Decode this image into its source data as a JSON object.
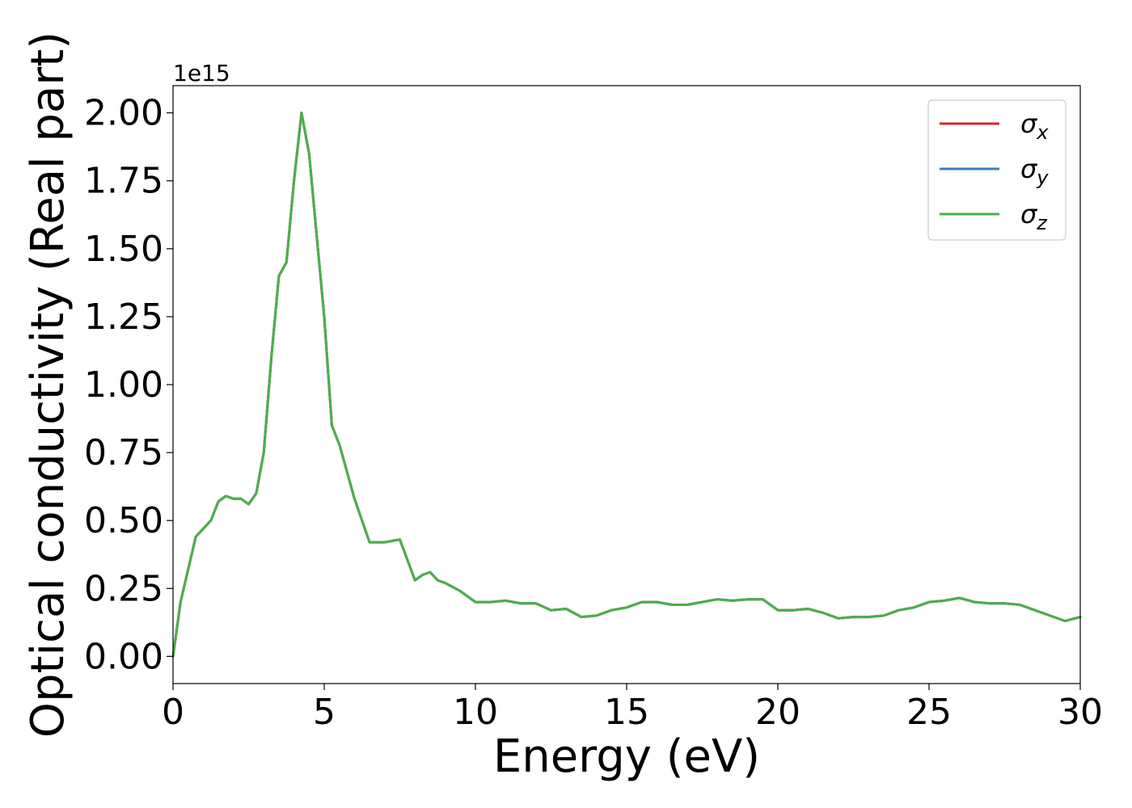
{
  "chart_data": {
    "type": "line",
    "xlabel": "Energy (eV)",
    "ylabel": "Optical conductivity (Real part)",
    "y_offset_label": "1e15",
    "xlim": [
      0,
      30
    ],
    "ylim": [
      -0.1,
      2.1
    ],
    "x_ticks": [
      0,
      5,
      10,
      15,
      20,
      25,
      30
    ],
    "x_tick_labels": [
      "0",
      "5",
      "10",
      "15",
      "20",
      "25",
      "30"
    ],
    "y_ticks": [
      0.0,
      0.25,
      0.5,
      0.75,
      1.0,
      1.25,
      1.5,
      1.75,
      2.0
    ],
    "y_tick_labels": [
      "0.00",
      "0.25",
      "0.50",
      "0.75",
      "1.00",
      "1.25",
      "1.50",
      "1.75",
      "2.00"
    ],
    "grid": false,
    "legend_position": "top-right",
    "legend": [
      {
        "symbol": "σ",
        "subscript": "x",
        "color": "#d62728"
      },
      {
        "symbol": "σ",
        "subscript": "y",
        "color": "#3a7dbf"
      },
      {
        "symbol": "σ",
        "subscript": "z",
        "color": "#4daf4a"
      }
    ],
    "x": [
      0,
      0.25,
      0.5,
      0.75,
      1.0,
      1.25,
      1.5,
      1.75,
      2.0,
      2.25,
      2.5,
      2.75,
      3.0,
      3.25,
      3.5,
      3.75,
      4.0,
      4.25,
      4.5,
      4.75,
      5.0,
      5.25,
      5.5,
      5.75,
      6.0,
      6.5,
      7.0,
      7.5,
      8.0,
      8.25,
      8.5,
      8.75,
      9.0,
      9.5,
      10.0,
      10.5,
      11.0,
      11.5,
      12.0,
      12.5,
      13.0,
      13.25,
      13.5,
      14.0,
      14.5,
      15.0,
      15.5,
      16.0,
      16.5,
      17.0,
      17.5,
      18.0,
      18.5,
      19.0,
      19.5,
      20.0,
      20.5,
      21.0,
      21.5,
      22.0,
      22.5,
      23.0,
      23.5,
      24.0,
      24.5,
      25.0,
      25.5,
      26.0,
      26.5,
      27.0,
      27.5,
      28.0,
      28.5,
      29.0,
      29.5,
      30.0
    ],
    "series": [
      {
        "name": "σx",
        "color": "#d62728",
        "values": [
          0.0,
          0.2,
          0.32,
          0.44,
          0.47,
          0.5,
          0.57,
          0.59,
          0.58,
          0.58,
          0.56,
          0.6,
          0.75,
          1.1,
          1.4,
          1.45,
          1.75,
          2.0,
          1.85,
          1.55,
          1.25,
          0.85,
          0.78,
          0.68,
          0.58,
          0.42,
          0.42,
          0.43,
          0.28,
          0.3,
          0.31,
          0.28,
          0.27,
          0.24,
          0.2,
          0.2,
          0.205,
          0.195,
          0.195,
          0.17,
          0.175,
          0.16,
          0.145,
          0.15,
          0.17,
          0.18,
          0.2,
          0.2,
          0.19,
          0.19,
          0.2,
          0.21,
          0.205,
          0.21,
          0.21,
          0.17,
          0.17,
          0.175,
          0.16,
          0.14,
          0.145,
          0.145,
          0.15,
          0.17,
          0.18,
          0.2,
          0.205,
          0.215,
          0.2,
          0.195,
          0.195,
          0.19,
          0.17,
          0.15,
          0.13,
          0.145
        ]
      },
      {
        "name": "σy",
        "color": "#3a7dbf",
        "values": [
          0.0,
          0.2,
          0.32,
          0.44,
          0.47,
          0.5,
          0.57,
          0.59,
          0.58,
          0.58,
          0.56,
          0.6,
          0.75,
          1.1,
          1.4,
          1.45,
          1.75,
          2.0,
          1.85,
          1.55,
          1.25,
          0.85,
          0.78,
          0.68,
          0.58,
          0.42,
          0.42,
          0.43,
          0.28,
          0.3,
          0.31,
          0.28,
          0.27,
          0.24,
          0.2,
          0.2,
          0.205,
          0.195,
          0.195,
          0.17,
          0.175,
          0.16,
          0.145,
          0.15,
          0.17,
          0.18,
          0.2,
          0.2,
          0.19,
          0.19,
          0.2,
          0.21,
          0.205,
          0.21,
          0.21,
          0.17,
          0.17,
          0.175,
          0.16,
          0.14,
          0.145,
          0.145,
          0.15,
          0.17,
          0.18,
          0.2,
          0.205,
          0.215,
          0.2,
          0.195,
          0.195,
          0.19,
          0.17,
          0.15,
          0.13,
          0.145
        ]
      },
      {
        "name": "σz",
        "color": "#4daf4a",
        "values": [
          0.0,
          0.2,
          0.32,
          0.44,
          0.47,
          0.5,
          0.57,
          0.59,
          0.58,
          0.58,
          0.56,
          0.6,
          0.75,
          1.1,
          1.4,
          1.45,
          1.75,
          2.0,
          1.85,
          1.55,
          1.25,
          0.85,
          0.78,
          0.68,
          0.58,
          0.42,
          0.42,
          0.43,
          0.28,
          0.3,
          0.31,
          0.28,
          0.27,
          0.24,
          0.2,
          0.2,
          0.205,
          0.195,
          0.195,
          0.17,
          0.175,
          0.16,
          0.145,
          0.15,
          0.17,
          0.18,
          0.2,
          0.2,
          0.19,
          0.19,
          0.2,
          0.21,
          0.205,
          0.21,
          0.21,
          0.17,
          0.17,
          0.175,
          0.16,
          0.14,
          0.145,
          0.145,
          0.15,
          0.17,
          0.18,
          0.2,
          0.205,
          0.215,
          0.2,
          0.195,
          0.195,
          0.19,
          0.17,
          0.15,
          0.13,
          0.145
        ]
      }
    ]
  }
}
